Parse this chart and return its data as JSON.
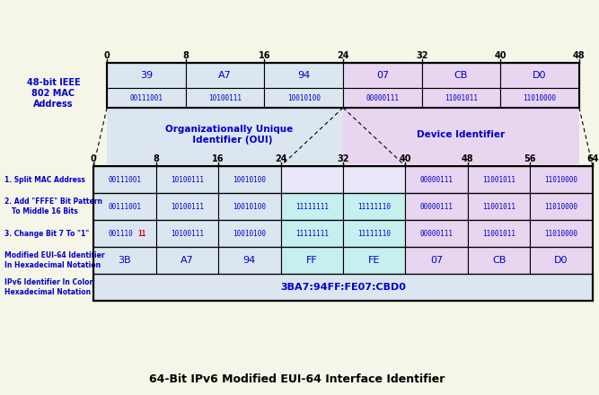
{
  "title": "64-Bit IPv6 Modified EUI-64 Interface Identifier",
  "mac_hex": [
    "39",
    "A7",
    "94",
    "07",
    "CB",
    "D0"
  ],
  "mac_bin": [
    "00111001",
    "10100111",
    "10010100",
    "00000111",
    "11001011",
    "11010000"
  ],
  "mac_ticks": [
    0,
    8,
    16,
    24,
    32,
    40,
    48
  ],
  "eui_ticks": [
    0,
    8,
    16,
    24,
    32,
    40,
    48,
    56,
    64
  ],
  "row1_label": "1. Split MAC Address",
  "row2_label": "2. Add \"FFFE\" Bit Pattern\n   To Middle 16 Bits",
  "row3_label": "3. Change Bit 7 To \"1\"",
  "row4_label": "Modified EUI-64 Identifier\nIn Hexadecimal Notation",
  "row5_label": "IPv6 Identifier In Colon\nHexadecimal Notation",
  "row1_bin": [
    "00111001",
    "10100111",
    "10010100",
    "",
    "",
    "00000111",
    "11001011",
    "11010000"
  ],
  "row2_bin": [
    "00111001",
    "10100111",
    "10010100",
    "11111111",
    "11111110",
    "00000111",
    "11001011",
    "11010000"
  ],
  "row3_bin": [
    "00111011",
    "10100111",
    "10010100",
    "11111111",
    "11111110",
    "00000111",
    "11001011",
    "11010000"
  ],
  "row4_hex": [
    "3B",
    "A7",
    "94",
    "FF",
    "FE",
    "07",
    "CB",
    "D0"
  ],
  "row5_text": "3BA7:94FF:FE07:CBD0",
  "color_oui_light": "#dce6f1",
  "color_oui_mid": "#b8cce4",
  "color_dev_light": "#e8d5f0",
  "color_dev_mid": "#d7b0e8",
  "color_fffe_light": "#c6efef",
  "color_fffe_mid": "#92d0d0",
  "color_header_bg": "#dce6f1",
  "color_grid_bg": "#f0f0f8",
  "text_color_main": "#0000cc",
  "text_color_red": "#cc0000"
}
